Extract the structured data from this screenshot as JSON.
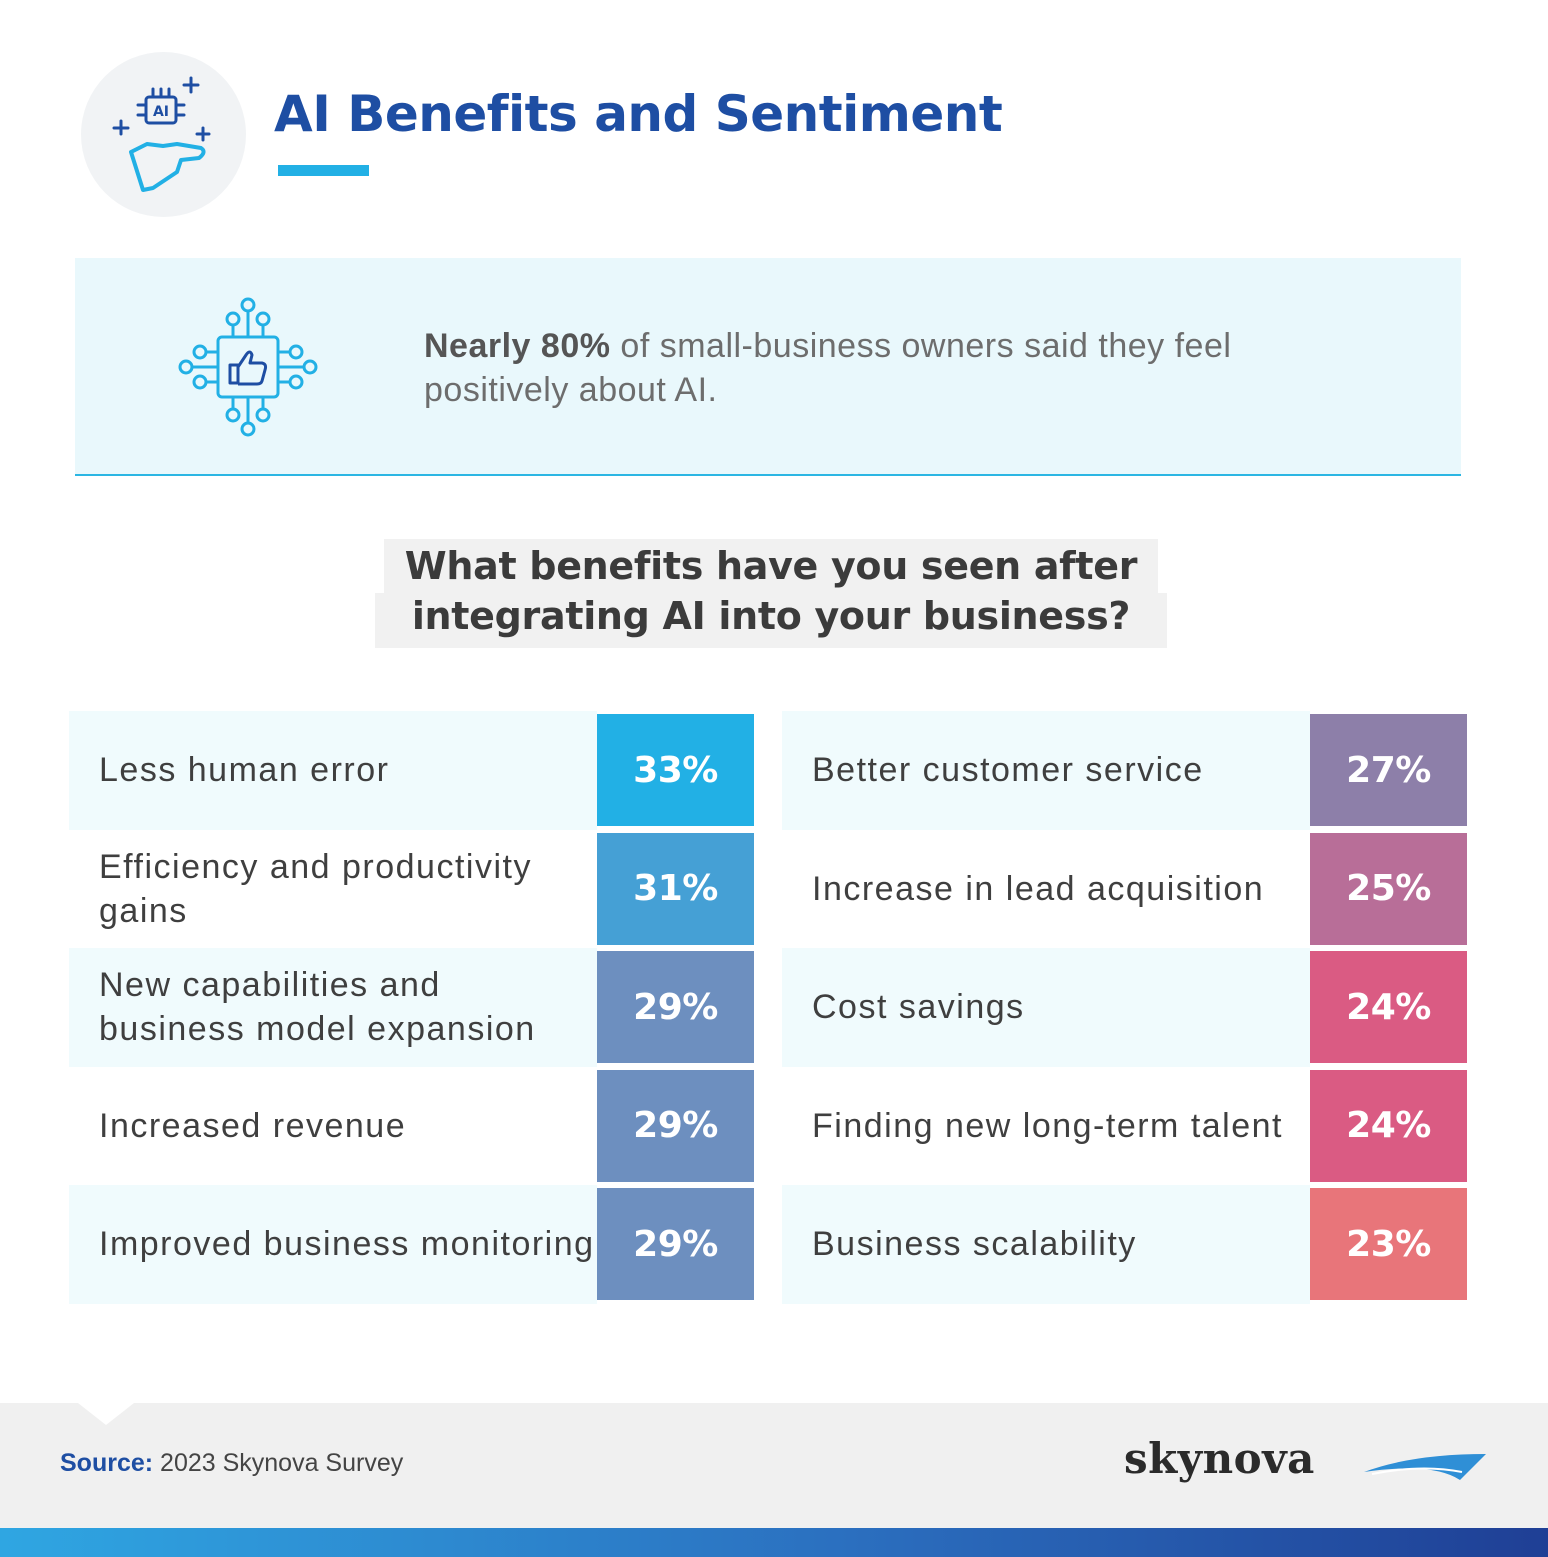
{
  "header": {
    "title": "AI Benefits and Sentiment",
    "icon": "ai-chip-hand-icon",
    "icon_label": "AI"
  },
  "stat": {
    "icon": "thumbs-up-circuit-icon",
    "emphasis": "Nearly 80%",
    "text": " of small-business owners said they feel positively about AI."
  },
  "chart_data": {
    "type": "bar",
    "title": "What benefits have you seen after integrating AI into your business?",
    "unit": "%",
    "categories": [
      "Less human error",
      "Efficiency and productivity gains",
      "New capabilities and business model expansion",
      "Increased revenue",
      "Improved business monitoring",
      "Better customer service",
      "Increase in lead acquisition",
      "Cost savings",
      "Finding new long-term talent",
      "Business scalability"
    ],
    "values": [
      33,
      31,
      29,
      29,
      29,
      27,
      25,
      24,
      24,
      23
    ],
    "value_labels": [
      "33%",
      "31%",
      "29%",
      "29%",
      "29%",
      "27%",
      "25%",
      "24%",
      "24%",
      "23%"
    ],
    "colors": [
      "#22b0e5",
      "#45a0d5",
      "#6d8fbf",
      "#6d8fbf",
      "#6d8fbf",
      "#8d7fa9",
      "#b86e98",
      "#da5b83",
      "#da5b83",
      "#e8757a"
    ],
    "layout": "two columns of five"
  },
  "footer": {
    "source_label": "Source:",
    "source_text": " 2023 Skynova Survey",
    "brand": "skynova",
    "brand_icon": "skynova-wing-logo"
  },
  "colors": {
    "title": "#1e4ea3",
    "accent": "#22b0e5",
    "stat_background": "#e9f8fc"
  }
}
